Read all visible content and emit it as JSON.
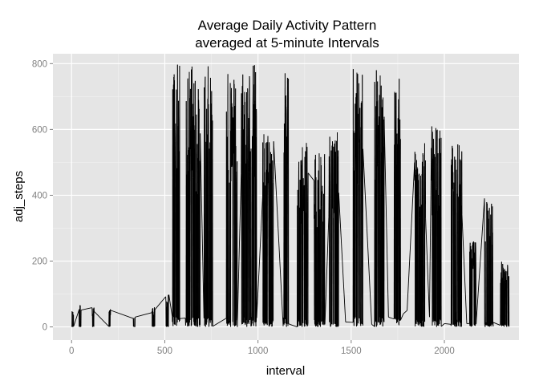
{
  "chart_data": {
    "type": "line",
    "title": [
      "Average Daily Activity Pattern",
      "averaged at 5-minute Intervals"
    ],
    "xlabel": "interval",
    "ylabel": "adj_steps",
    "xlim": [
      -100,
      2400
    ],
    "ylim": [
      -40,
      830
    ],
    "xticks": [
      0,
      500,
      1000,
      1500,
      2000
    ],
    "yticks": [
      0,
      200,
      400,
      600,
      800
    ],
    "grid": true,
    "panel_background": "#e5e5e5",
    "grid_color": "#ffffff",
    "line_color": "#000000",
    "active_bursts": [
      [
        0,
        50,
        2
      ],
      [
        40,
        70,
        2
      ],
      [
        110,
        60,
        2
      ],
      [
        200,
        55,
        2
      ],
      [
        330,
        35,
        2
      ],
      [
        430,
        60,
        3
      ],
      [
        505,
        100,
        3
      ],
      [
        540,
        800,
        7
      ],
      [
        610,
        805,
        9
      ],
      [
        655,
        730,
        6
      ],
      [
        710,
        795,
        8
      ],
      [
        830,
        780,
        10
      ],
      [
        910,
        805,
        14
      ],
      [
        1025,
        600,
        10
      ],
      [
        1135,
        785,
        5
      ],
      [
        1210,
        560,
        10
      ],
      [
        1300,
        550,
        10
      ],
      [
        1380,
        600,
        9
      ],
      [
        1510,
        785,
        9
      ],
      [
        1625,
        785,
        9
      ],
      [
        1730,
        755,
        6
      ],
      [
        1840,
        560,
        10
      ],
      [
        1930,
        610,
        9
      ],
      [
        2035,
        560,
        10
      ],
      [
        2135,
        260,
        6
      ],
      [
        2215,
        400,
        8
      ],
      [
        2300,
        200,
        8
      ]
    ],
    "quiet_points": [
      [
        1150,
        10
      ],
      [
        1170,
        8
      ],
      [
        1470,
        15
      ],
      [
        1610,
        8
      ],
      [
        1700,
        30
      ],
      [
        1780,
        40
      ],
      [
        1800,
        50
      ],
      [
        1880,
        40
      ],
      [
        1920,
        30
      ],
      [
        2000,
        10
      ],
      [
        2090,
        15
      ],
      [
        2120,
        10
      ]
    ]
  }
}
